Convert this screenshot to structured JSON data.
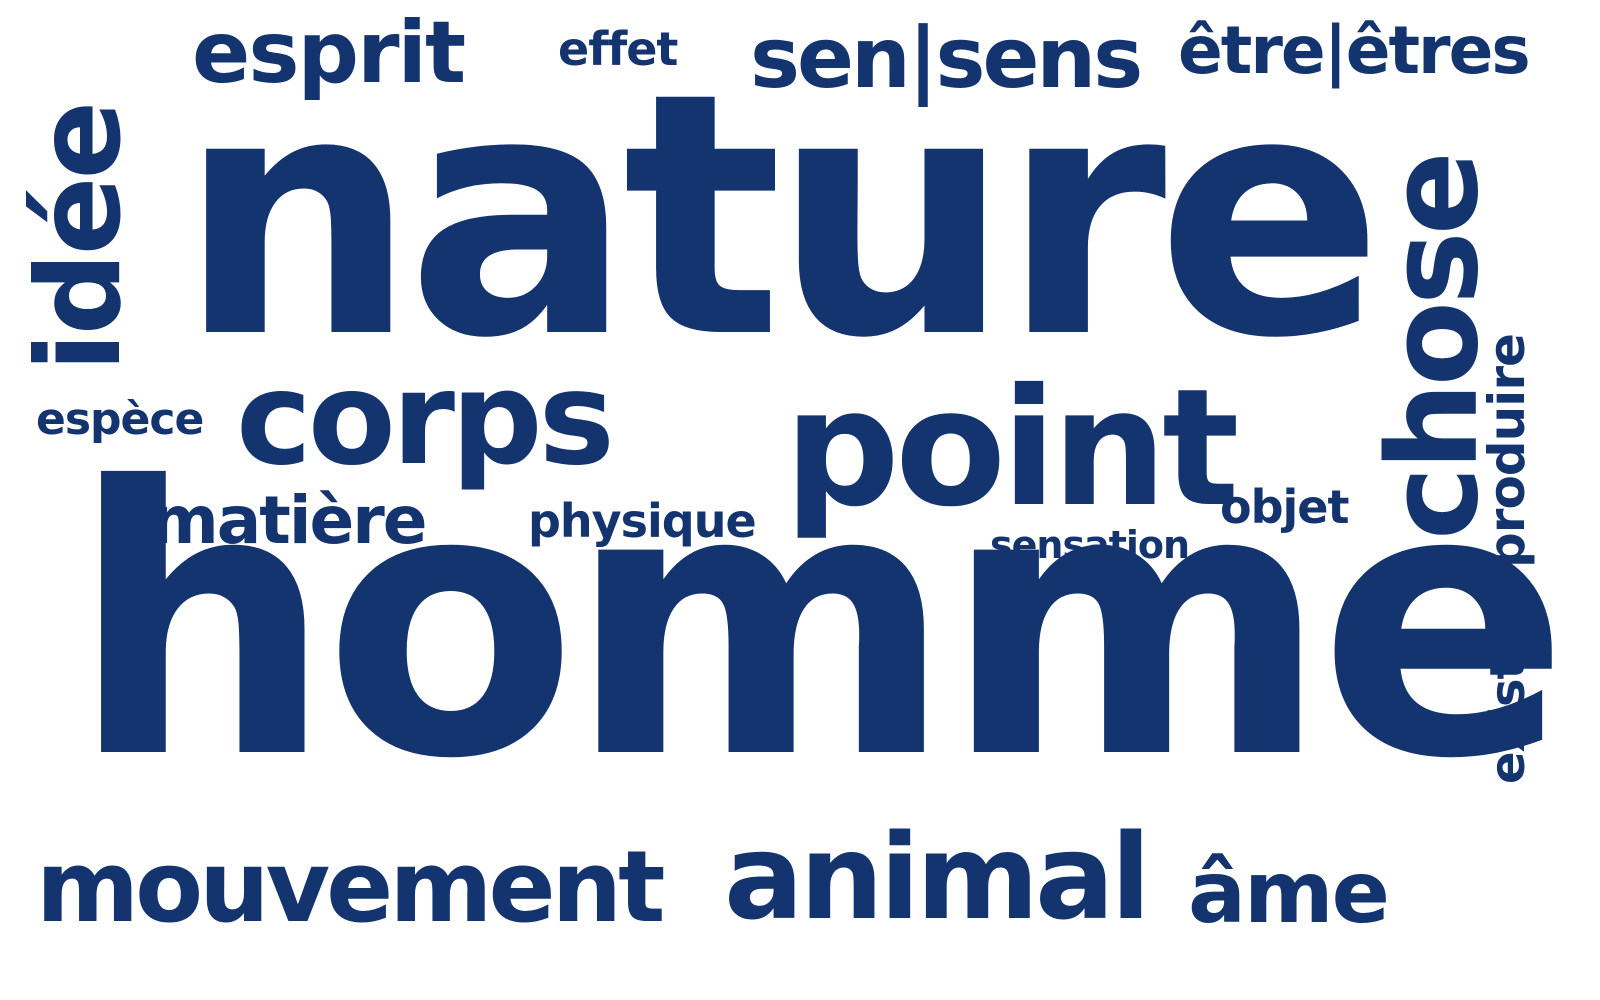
{
  "theme": {
    "background": "#ffffff",
    "word_color": "#14346f"
  },
  "words": {
    "homme": "homme",
    "nature": "nature",
    "point": "point",
    "corps": "corps",
    "mouvement": "mouvement",
    "animal": "animal",
    "ame": "âme",
    "esprit": "esprit",
    "effet": "effet",
    "sens": "sen|sens",
    "etre": "être|êtres",
    "espece": "espèce",
    "matiere": "matière",
    "physique": "physique",
    "sensation": "sensation",
    "objet": "objet",
    "idee": "idée",
    "chose": "chose",
    "produire": "produire",
    "exister": "exister"
  }
}
